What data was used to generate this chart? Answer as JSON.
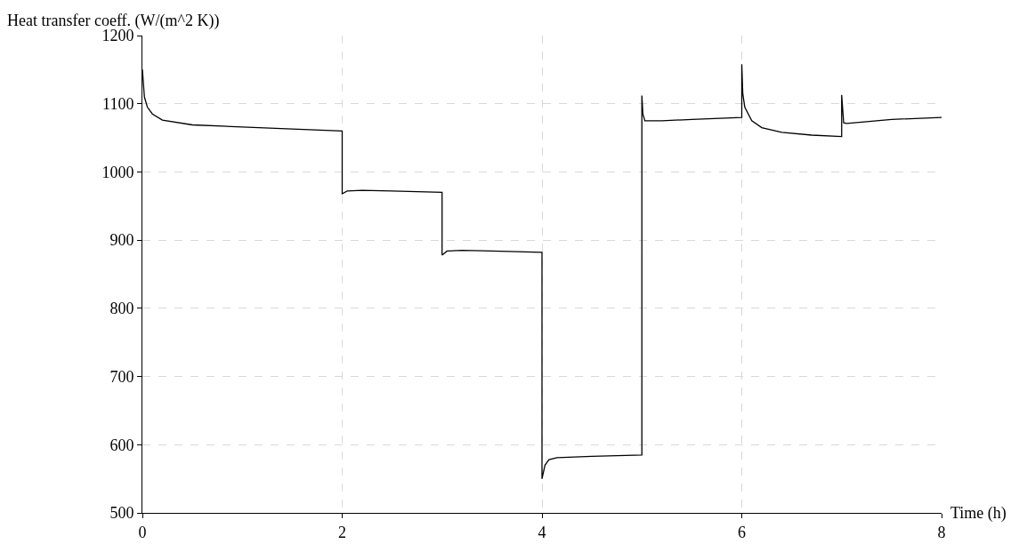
{
  "chart_data": {
    "type": "line",
    "xlabel": "Time (h)",
    "ylabel": "Heat transfer coeff. (W/(m^2 K))",
    "series": [
      {
        "color": "#000000",
        "x": [
          0,
          0.02,
          0.05,
          0.1,
          0.2,
          0.5,
          1,
          1.5,
          2,
          2,
          2.05,
          2.2,
          2.5,
          3,
          3,
          3.05,
          3.2,
          3.5,
          4,
          4,
          4.03,
          4.07,
          4.15,
          4.5,
          5,
          5,
          5.01,
          5.03,
          5.2,
          5.5,
          6,
          6,
          6.01,
          6.03,
          6.1,
          6.2,
          6.4,
          6.7,
          7,
          7,
          7.02,
          7.05,
          7.2,
          7.5,
          8
        ],
        "values": [
          1150,
          1110,
          1095,
          1085,
          1076,
          1069,
          1066,
          1063,
          1060,
          968,
          972,
          973,
          972,
          970,
          878,
          884,
          885,
          884,
          882,
          550,
          570,
          578,
          581,
          583,
          585,
          1112,
          1085,
          1075,
          1075,
          1077,
          1080,
          1158,
          1115,
          1095,
          1075,
          1065,
          1058,
          1054,
          1052,
          1113,
          1072,
          1071,
          1073,
          1077,
          1080
        ]
      }
    ],
    "xlim": [
      0,
      8
    ],
    "xticks": [
      0,
      2,
      4,
      6,
      8
    ],
    "ylim": [
      500,
      1200
    ],
    "yticks": [
      500,
      600,
      700,
      800,
      900,
      1000,
      1100,
      1200
    ],
    "grid": true,
    "marker": "none",
    "line_style": "solid"
  }
}
